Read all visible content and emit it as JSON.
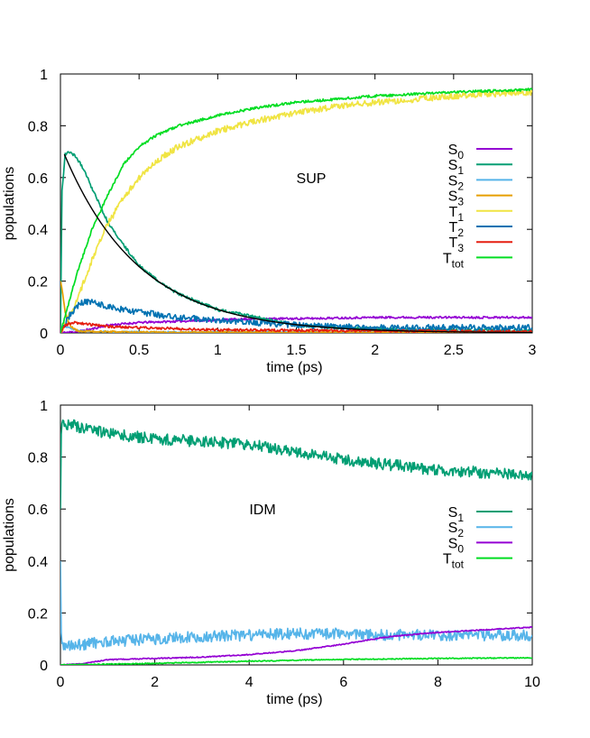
{
  "colors": {
    "S0": "#9400d3",
    "S1": "#009e73",
    "S2": "#56b4e9",
    "S3": "#e69f00",
    "T1": "#f0e442",
    "T2": "#0072b2",
    "T3": "#e51e10",
    "Ttot": "#00dd22",
    "fit": "#000000"
  },
  "chart_data": [
    {
      "type": "line",
      "annotation": "SUP",
      "xlabel": "time (ps)",
      "ylabel": "populations",
      "xlim": [
        0,
        3
      ],
      "ylim": [
        0,
        1
      ],
      "xticks": [
        "0",
        "0.5",
        "1",
        "1.5",
        "2",
        "2.5",
        "3"
      ],
      "xtick_values": [
        0,
        0.5,
        1,
        1.5,
        2,
        2.5,
        3
      ],
      "yticks": [
        "0",
        "0.2",
        "0.4",
        "0.6",
        "0.8",
        "1"
      ],
      "ytick_values": [
        0,
        0.2,
        0.4,
        0.6,
        0.8,
        1
      ],
      "legend_position": "right",
      "series": [
        {
          "name": "S",
          "sub": "0",
          "color": "#9400d3",
          "noise": 0.004,
          "x": [
            0,
            0.1,
            0.2,
            0.3,
            0.5,
            0.75,
            1,
            1.25,
            1.5,
            2,
            2.5,
            3
          ],
          "y": [
            0,
            0.005,
            0.015,
            0.03,
            0.04,
            0.045,
            0.05,
            0.055,
            0.055,
            0.06,
            0.06,
            0.06
          ]
        },
        {
          "name": "S",
          "sub": "1",
          "color": "#009e73",
          "noise": 0.006,
          "x": [
            0,
            0.01,
            0.03,
            0.06,
            0.1,
            0.15,
            0.2,
            0.3,
            0.4,
            0.5,
            0.6,
            0.75,
            1,
            1.25,
            1.5,
            1.75,
            2,
            2.5,
            3
          ],
          "y": [
            0,
            0.55,
            0.69,
            0.7,
            0.68,
            0.63,
            0.56,
            0.43,
            0.34,
            0.26,
            0.21,
            0.15,
            0.09,
            0.06,
            0.03,
            0.02,
            0.015,
            0.01,
            0.01
          ]
        },
        {
          "name": "S",
          "sub": "2",
          "color": "#56b4e9",
          "noise": 0.003,
          "x": [
            0,
            0.02,
            0.05,
            0.1,
            0.2,
            0.5,
            1,
            3
          ],
          "y": [
            0.01,
            0.03,
            0.02,
            0.01,
            0.005,
            0.003,
            0.003,
            0.003
          ]
        },
        {
          "name": "S",
          "sub": "3",
          "color": "#e69f00",
          "noise": 0.004,
          "x": [
            0,
            0.01,
            0.03,
            0.06,
            0.1,
            0.2,
            0.5,
            3
          ],
          "y": [
            0.2,
            0.17,
            0.08,
            0.03,
            0.01,
            0.005,
            0.002,
            0.002
          ]
        },
        {
          "name": "T",
          "sub": "1",
          "color": "#f0e442",
          "noise": 0.012,
          "x": [
            0,
            0.1,
            0.2,
            0.3,
            0.4,
            0.5,
            0.6,
            0.75,
            1,
            1.25,
            1.5,
            1.75,
            2,
            2.5,
            3
          ],
          "y": [
            0,
            0.12,
            0.28,
            0.42,
            0.52,
            0.6,
            0.66,
            0.72,
            0.78,
            0.82,
            0.85,
            0.875,
            0.89,
            0.915,
            0.93
          ]
        },
        {
          "name": "T",
          "sub": "2",
          "color": "#0072b2",
          "noise": 0.012,
          "x": [
            0,
            0.05,
            0.1,
            0.15,
            0.2,
            0.3,
            0.5,
            0.75,
            1,
            1.25,
            1.5,
            2,
            2.5,
            3
          ],
          "y": [
            0,
            0.06,
            0.1,
            0.12,
            0.12,
            0.1,
            0.08,
            0.06,
            0.05,
            0.04,
            0.03,
            0.02,
            0.02,
            0.02
          ]
        },
        {
          "name": "T",
          "sub": "3",
          "color": "#e51e10",
          "noise": 0.005,
          "x": [
            0,
            0.03,
            0.08,
            0.15,
            0.3,
            0.5,
            1,
            1.5,
            2,
            3
          ],
          "y": [
            0,
            0.03,
            0.04,
            0.035,
            0.025,
            0.02,
            0.012,
            0.01,
            0.008,
            0.005
          ]
        },
        {
          "name": "T",
          "sub": "tot",
          "color": "#00dd22",
          "noise": 0.005,
          "x": [
            0,
            0.1,
            0.2,
            0.3,
            0.4,
            0.5,
            0.6,
            0.75,
            1,
            1.25,
            1.5,
            2,
            2.5,
            3
          ],
          "y": [
            0,
            0.22,
            0.4,
            0.53,
            0.65,
            0.72,
            0.76,
            0.8,
            0.84,
            0.87,
            0.89,
            0.915,
            0.93,
            0.94
          ]
        }
      ],
      "fit": {
        "color": "#000000",
        "x0": 0.025,
        "y0": 0.69,
        "tau": 0.48,
        "xmax": 3
      }
    },
    {
      "type": "line",
      "annotation": "IDM",
      "xlabel": "time (ps)",
      "ylabel": "populations",
      "xlim": [
        0,
        10
      ],
      "ylim": [
        0,
        1
      ],
      "xticks": [
        "0",
        "2",
        "4",
        "6",
        "8",
        "10"
      ],
      "xtick_values": [
        0,
        2,
        4,
        6,
        8,
        10
      ],
      "yticks": [
        "0",
        "0.2",
        "0.4",
        "0.6",
        "0.8",
        "1"
      ],
      "ytick_values": [
        0,
        0.2,
        0.4,
        0.6,
        0.8,
        1
      ],
      "legend_position": "right",
      "series": [
        {
          "name": "S",
          "sub": "1",
          "color": "#009e73",
          "noise": 0.022,
          "x": [
            0,
            0.02,
            0.1,
            0.3,
            1,
            2,
            3,
            4,
            5,
            6,
            7,
            8,
            9,
            10
          ],
          "y": [
            0.6,
            0.92,
            0.93,
            0.92,
            0.89,
            0.87,
            0.86,
            0.85,
            0.82,
            0.79,
            0.77,
            0.75,
            0.74,
            0.73
          ]
        },
        {
          "name": "S",
          "sub": "2",
          "color": "#56b4e9",
          "noise": 0.022,
          "x": [
            0,
            0.02,
            0.1,
            0.3,
            1,
            2,
            3,
            4,
            5,
            6,
            7,
            8,
            9,
            10
          ],
          "y": [
            0.4,
            0.08,
            0.07,
            0.075,
            0.09,
            0.1,
            0.11,
            0.115,
            0.12,
            0.12,
            0.115,
            0.115,
            0.115,
            0.115
          ]
        },
        {
          "name": "S",
          "sub": "0",
          "color": "#9400d3",
          "noise": 0.002,
          "x": [
            0,
            0.5,
            1,
            2,
            3,
            4,
            5,
            6,
            7,
            8,
            9,
            10
          ],
          "y": [
            0,
            0.005,
            0.02,
            0.025,
            0.03,
            0.04,
            0.055,
            0.08,
            0.11,
            0.125,
            0.135,
            0.145
          ]
        },
        {
          "name": "T",
          "sub": "tot",
          "color": "#00dd22",
          "noise": 0.002,
          "x": [
            0,
            1,
            2,
            3,
            4,
            5,
            6,
            7,
            8,
            9,
            10
          ],
          "y": [
            0,
            0.003,
            0.006,
            0.01,
            0.014,
            0.018,
            0.021,
            0.023,
            0.025,
            0.026,
            0.027
          ]
        }
      ]
    }
  ]
}
